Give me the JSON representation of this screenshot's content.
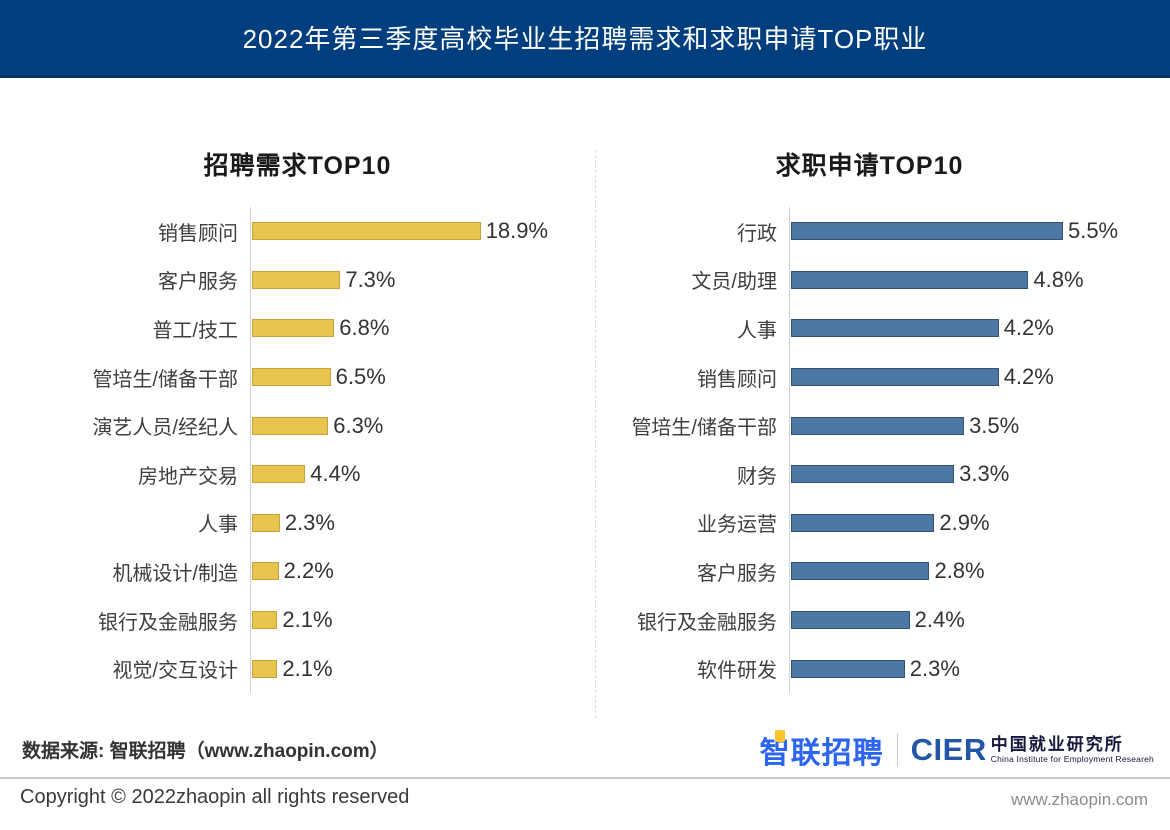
{
  "header": {
    "title": "2022年第三季度高校毕业生招聘需求和求职申请TOP职业"
  },
  "chart_data": [
    {
      "type": "bar",
      "orientation": "horizontal",
      "title": "招聘需求TOP10",
      "categories": [
        "销售顾问",
        "客户服务",
        "普工/技工",
        "管培生/储备干部",
        "演艺人员/经纪人",
        "房地产交易",
        "人事",
        "机械设计/制造",
        "银行及金融服务",
        "视觉/交互设计"
      ],
      "values": [
        18.9,
        7.3,
        6.8,
        6.5,
        6.3,
        4.4,
        2.3,
        2.2,
        2.1,
        2.1
      ],
      "value_suffix": "%",
      "xlim": [
        0,
        19
      ],
      "grid": false,
      "legend": false,
      "bar_color": "#e8c34d",
      "bar_border_color": "#c7a339"
    },
    {
      "type": "bar",
      "orientation": "horizontal",
      "title": "求职申请TOP10",
      "categories": [
        "行政",
        "文员/助理",
        "人事",
        "销售顾问",
        "管培生/储备干部",
        "财务",
        "业务运营",
        "客户服务",
        "银行及金融服务",
        "软件研发"
      ],
      "values": [
        5.5,
        4.8,
        4.2,
        4.2,
        3.5,
        3.3,
        2.9,
        2.8,
        2.4,
        2.3
      ],
      "value_suffix": "%",
      "xlim": [
        0,
        5.6
      ],
      "grid": false,
      "legend": false,
      "bar_color": "#4d77a5",
      "bar_border_color": "#32506f"
    }
  ],
  "footer": {
    "source": "数据来源: 智联招聘（www.zhaopin.com）",
    "logo_zhaopin": "智联招聘",
    "logo_cier": "CIER",
    "logo_cier_cn": "中国就业研究所",
    "logo_cier_en": "China Institute for Employment Researeh",
    "copyright": "Copyright ©  2022zhaopin all rights reserved",
    "website": "www.zhaopin.com"
  },
  "colors": {
    "header_bg": "#003e7e",
    "header_text": "#ffffff",
    "left_bar": "#e8c34d",
    "right_bar": "#4d77a5",
    "zhaopin_logo_blue": "#2b65f0",
    "zhaopin_logo_yellow": "#ffc32e",
    "cier_blue": "#2257a8",
    "cier_dark": "#15173c",
    "axis_line": "#d2d2d2"
  }
}
